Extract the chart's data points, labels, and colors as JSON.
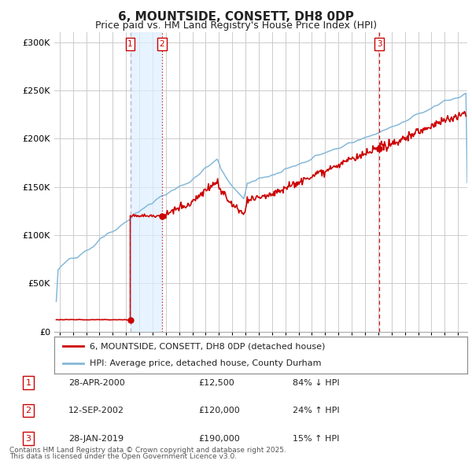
{
  "title": "6, MOUNTSIDE, CONSETT, DH8 0DP",
  "subtitle": "Price paid vs. HM Land Registry's House Price Index (HPI)",
  "legend_line1": "6, MOUNTSIDE, CONSETT, DH8 0DP (detached house)",
  "legend_line2": "HPI: Average price, detached house, County Durham",
  "footer1": "Contains HM Land Registry data © Crown copyright and database right 2025.",
  "footer2": "This data is licensed under the Open Government Licence v3.0.",
  "transactions": [
    {
      "num": 1,
      "date": "28-APR-2000",
      "price": "£12,500",
      "pct": "84% ↓ HPI",
      "x_year": 2000.32,
      "price_val": 12500,
      "vline_style": "dashed_gray"
    },
    {
      "num": 2,
      "date": "12-SEP-2002",
      "price": "£120,000",
      "pct": "24% ↑ HPI",
      "x_year": 2002.71,
      "price_val": 120000,
      "vline_style": "dotted_red"
    },
    {
      "num": 3,
      "date": "28-JAN-2019",
      "price": "£190,000",
      "pct": "15% ↑ HPI",
      "x_year": 2019.08,
      "price_val": 190000,
      "vline_style": "dashed_red"
    }
  ],
  "price_color": "#cc0000",
  "hpi_color": "#85b9d9",
  "shade_color": "#ddeeff",
  "ylim": [
    0,
    310000
  ],
  "yticks": [
    0,
    50000,
    100000,
    150000,
    200000,
    250000,
    300000
  ],
  "xlim_start": 1994.6,
  "xlim_end": 2025.7,
  "background_color": "#ffffff",
  "grid_color": "#cccccc"
}
